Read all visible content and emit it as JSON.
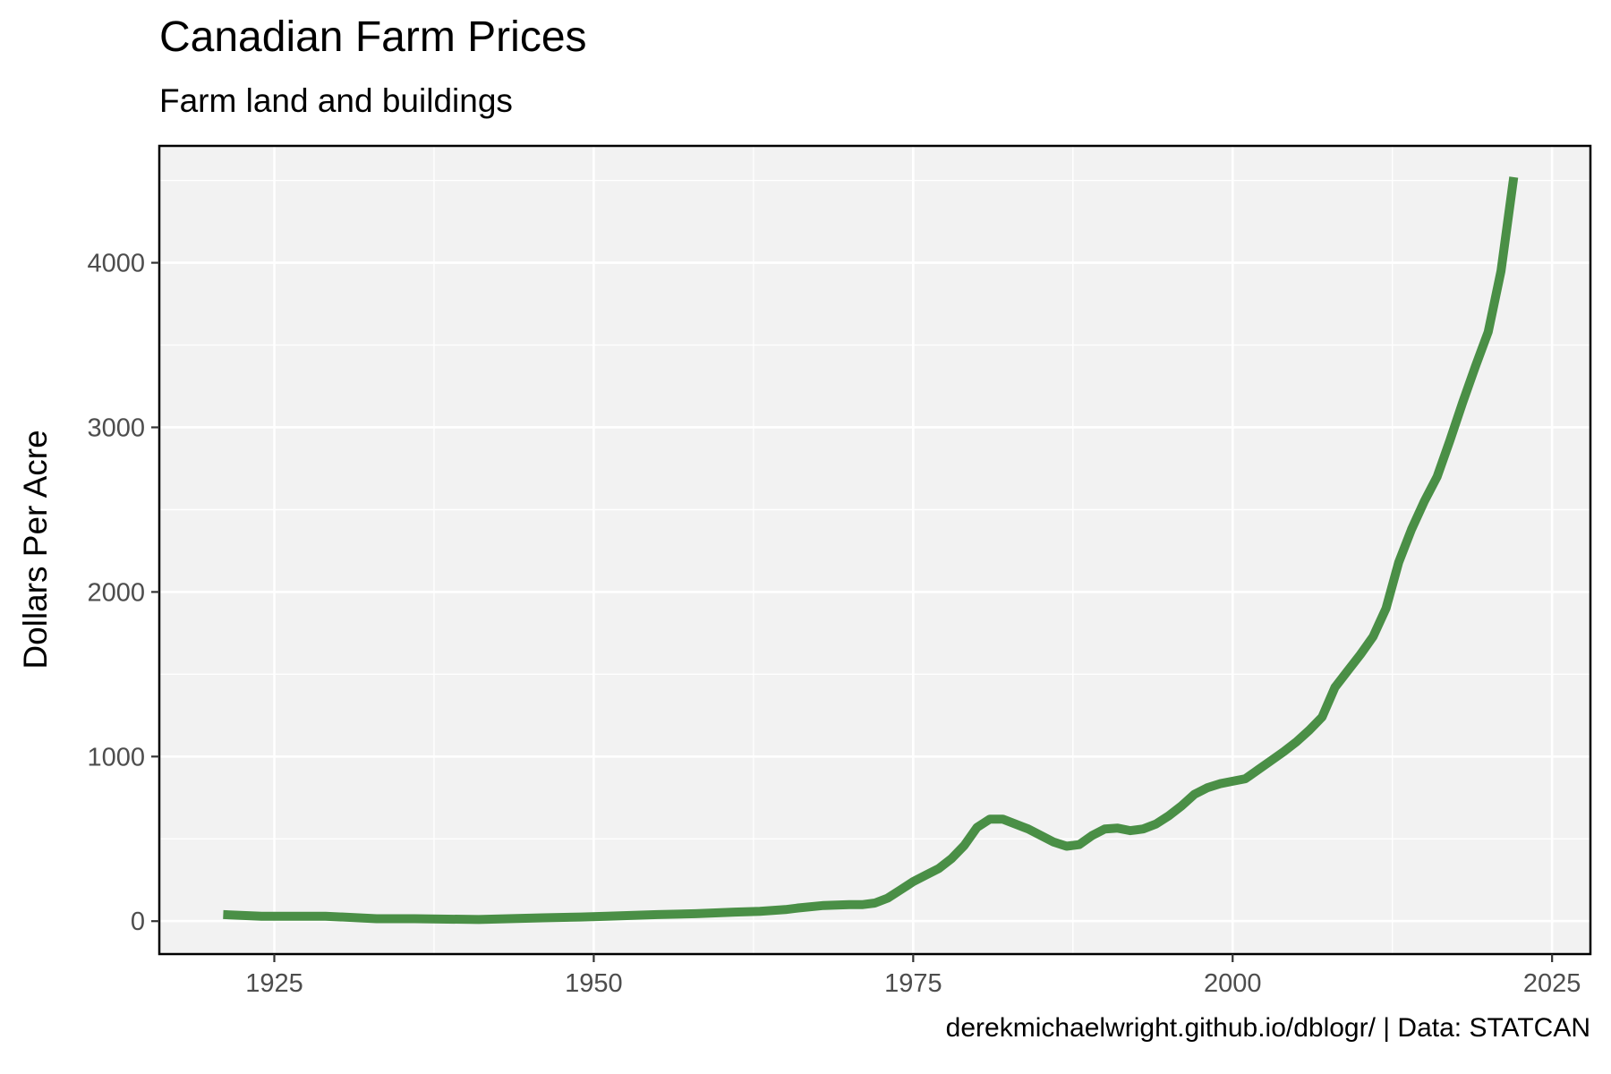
{
  "header": {
    "title": "Canadian Farm Prices",
    "subtitle": "Farm land and buildings"
  },
  "footer": {
    "caption": "derekmichaelwright.github.io/dblogr/ | Data: STATCAN"
  },
  "colors": {
    "line": "#4a8f46",
    "panel": "#f2f2f2",
    "grid": "#ffffff",
    "border": "#000000"
  },
  "chart_data": {
    "type": "line",
    "ylabel": "Dollars Per Acre",
    "xlim": [
      1916,
      2028
    ],
    "ylim": [
      -200,
      4710
    ],
    "x_ticks": [
      1925,
      1950,
      1975,
      2000,
      2025
    ],
    "y_ticks": [
      0,
      1000,
      2000,
      3000,
      4000
    ],
    "grid": true,
    "series": [
      {
        "x": [
          1921,
          1924,
          1929,
          1933,
          1936,
          1941,
          1946,
          1949,
          1951,
          1955,
          1958,
          1961,
          1963,
          1965,
          1966,
          1968,
          1970,
          1971,
          1972,
          1973,
          1974,
          1975,
          1976,
          1977,
          1978,
          1979,
          1980,
          1981,
          1982,
          1983,
          1984,
          1985,
          1986,
          1987,
          1988,
          1989,
          1990,
          1991,
          1992,
          1993,
          1994,
          1995,
          1996,
          1997,
          1998,
          1999,
          2000,
          2001,
          2002,
          2003,
          2004,
          2005,
          2006,
          2007,
          2008,
          2009,
          2010,
          2011,
          2012,
          2013,
          2014,
          2015,
          2016,
          2017,
          2018,
          2019,
          2020,
          2021,
          2022
        ],
        "y": [
          40,
          30,
          30,
          15,
          15,
          10,
          20,
          25,
          30,
          40,
          45,
          55,
          60,
          70,
          80,
          95,
          100,
          100,
          110,
          140,
          190,
          240,
          280,
          320,
          380,
          460,
          570,
          620,
          620,
          590,
          560,
          520,
          480,
          455,
          465,
          520,
          560,
          565,
          550,
          560,
          590,
          640,
          700,
          770,
          810,
          835,
          850,
          865,
          920,
          975,
          1030,
          1090,
          1160,
          1240,
          1420,
          1520,
          1620,
          1730,
          1900,
          2180,
          2380,
          2550,
          2700,
          2920,
          3150,
          3370,
          3580,
          3950,
          4520
        ]
      }
    ]
  }
}
